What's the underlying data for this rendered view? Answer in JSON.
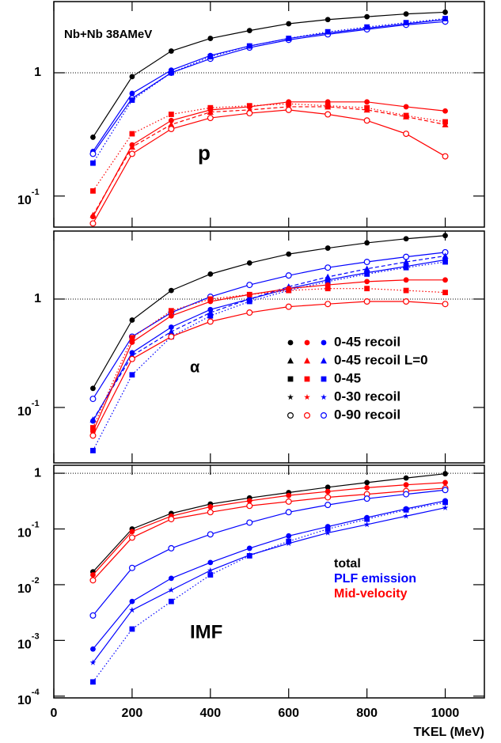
{
  "chart_data": [
    {
      "type": "line",
      "title": "Nb+Nb 38AMeV",
      "label": "p",
      "log_y": true,
      "hline": 1,
      "x": [
        100,
        200,
        300,
        400,
        500,
        600,
        700,
        800,
        900,
        1000
      ],
      "xlim": [
        0,
        1100
      ],
      "ylim": [
        0.056,
        3.78
      ],
      "yticks": [
        1,
        {
          "value": 0.1,
          "label": "10",
          "exponent": "-1"
        }
      ],
      "series": [
        {
          "color": "#000000",
          "marker": "circle",
          "dash": "solid",
          "values": [
            0.3,
            0.93,
            1.5,
            1.9,
            2.2,
            2.5,
            2.7,
            2.85,
            3.0,
            3.1
          ]
        },
        {
          "color": "#0000ff",
          "marker": "circle",
          "dash": "solid",
          "values": [
            0.23,
            0.68,
            1.05,
            1.38,
            1.65,
            1.9,
            2.1,
            2.3,
            2.5,
            2.7
          ]
        },
        {
          "color": "#0000ff",
          "marker": "open-circle",
          "dash": "solid",
          "values": [
            0.22,
            0.62,
            1.0,
            1.3,
            1.6,
            1.85,
            2.05,
            2.25,
            2.45,
            2.6
          ]
        },
        {
          "color": "#0000ff",
          "marker": "square",
          "dash": "dotted",
          "values": [
            0.185,
            0.6,
            1.0,
            1.35,
            1.65,
            1.9,
            2.15,
            2.35,
            2.55,
            2.75
          ]
        },
        {
          "color": "#ff0000",
          "marker": "square",
          "dash": "dotted",
          "values": [
            0.11,
            0.32,
            0.46,
            0.52,
            0.54,
            0.56,
            0.54,
            0.52,
            0.45,
            0.4
          ]
        },
        {
          "color": "#ff0000",
          "marker": "circle",
          "dash": "solid",
          "values": [
            0.068,
            0.26,
            0.41,
            0.5,
            0.53,
            0.58,
            0.58,
            0.58,
            0.53,
            0.49
          ]
        },
        {
          "color": "#ff0000",
          "marker": "triangle",
          "dash": "dashed",
          "values": [
            0.07,
            0.25,
            0.38,
            0.48,
            0.5,
            0.53,
            0.53,
            0.5,
            0.44,
            0.38
          ]
        },
        {
          "color": "#ff0000",
          "marker": "open-circle",
          "dash": "solid",
          "values": [
            0.06,
            0.22,
            0.35,
            0.43,
            0.47,
            0.5,
            0.46,
            0.41,
            0.32,
            0.21
          ]
        }
      ]
    },
    {
      "type": "line",
      "label": "α",
      "log_y": true,
      "hline": 1,
      "x": [
        100,
        200,
        300,
        400,
        500,
        600,
        700,
        800,
        900,
        1000
      ],
      "xlim": [
        0,
        1100
      ],
      "ylim": [
        0.0308,
        4.24
      ],
      "yticks": [
        1,
        {
          "value": 0.1,
          "label": "10",
          "exponent": "-1"
        }
      ],
      "legend_colors": [
        "#000000",
        "#ff0000",
        "#0000ff"
      ],
      "legend": [
        {
          "label": "0-45 recoil",
          "marker": "circle"
        },
        {
          "label": "0-45 recoil L=0",
          "marker": "triangle"
        },
        {
          "label": "0-45",
          "marker": "square"
        },
        {
          "label": "0-30 recoil",
          "marker": "star"
        },
        {
          "label": "0-90 recoil",
          "marker": "open-circle"
        }
      ],
      "series": [
        {
          "color": "#000000",
          "marker": "circle",
          "dash": "solid",
          "values": [
            0.15,
            0.64,
            1.2,
            1.7,
            2.15,
            2.6,
            2.95,
            3.3,
            3.6,
            3.85
          ]
        },
        {
          "color": "#0000ff",
          "marker": "open-circle",
          "dash": "solid",
          "values": [
            0.12,
            0.45,
            0.75,
            1.05,
            1.35,
            1.65,
            1.95,
            2.2,
            2.45,
            2.7
          ]
        },
        {
          "color": "#0000ff",
          "marker": "circle",
          "dash": "solid",
          "values": [
            0.075,
            0.32,
            0.55,
            0.8,
            1.0,
            1.25,
            1.5,
            1.75,
            2.0,
            2.3
          ]
        },
        {
          "color": "#0000ff",
          "marker": "triangle",
          "dash": "dashed",
          "values": [
            0.077,
            0.3,
            0.5,
            0.75,
            1.0,
            1.3,
            1.6,
            1.9,
            2.2,
            2.5
          ]
        },
        {
          "color": "#0000ff",
          "marker": "square",
          "dash": "dotted",
          "values": [
            0.04,
            0.2,
            0.45,
            0.7,
            0.95,
            1.2,
            1.45,
            1.7,
            1.95,
            2.2
          ]
        },
        {
          "color": "#ff0000",
          "marker": "square",
          "dash": "dotted",
          "values": [
            0.065,
            0.44,
            0.78,
            1.0,
            1.1,
            1.2,
            1.25,
            1.25,
            1.2,
            1.15
          ]
        },
        {
          "color": "#ff0000",
          "marker": "circle",
          "dash": "solid",
          "values": [
            0.06,
            0.4,
            0.7,
            0.95,
            1.1,
            1.25,
            1.35,
            1.45,
            1.5,
            1.5
          ]
        },
        {
          "color": "#ff0000",
          "marker": "open-circle",
          "dash": "solid",
          "values": [
            0.055,
            0.28,
            0.45,
            0.62,
            0.75,
            0.85,
            0.9,
            0.95,
            0.95,
            0.9
          ]
        }
      ]
    },
    {
      "type": "line",
      "label": "IMF",
      "log_y": true,
      "hline": 1,
      "x": [
        100,
        200,
        300,
        400,
        500,
        600,
        700,
        800,
        900,
        1000
      ],
      "xlim": [
        0,
        1100
      ],
      "xticks": [
        0,
        200,
        400,
        600,
        800,
        1000
      ],
      "xlabel": "TKEL (MeV)",
      "ylim": [
        9.3e-05,
        1.39
      ],
      "yticks": [
        1,
        {
          "value": 0.1,
          "label": "10",
          "exponent": "-1"
        },
        {
          "value": 0.01,
          "label": "10",
          "exponent": "-2"
        },
        {
          "value": 0.001,
          "label": "10",
          "exponent": "-3"
        },
        {
          "value": 0.0001,
          "label": "10",
          "exponent": "-4"
        }
      ],
      "legend": [
        {
          "label": "total",
          "color": "#000000"
        },
        {
          "label": "PLF emission",
          "color": "#0000ff"
        },
        {
          "label": "Mid-velocity",
          "color": "#ff0000"
        }
      ],
      "series": [
        {
          "color": "#000000",
          "marker": "circle",
          "dash": "solid",
          "values": [
            0.017,
            0.1,
            0.19,
            0.28,
            0.36,
            0.45,
            0.56,
            0.68,
            0.82,
            0.98
          ]
        },
        {
          "color": "#ff0000",
          "marker": "circle",
          "dash": "solid",
          "values": [
            0.015,
            0.09,
            0.17,
            0.25,
            0.32,
            0.4,
            0.47,
            0.55,
            0.62,
            0.68
          ]
        },
        {
          "color": "#ff0000",
          "marker": "open-circle",
          "dash": "solid",
          "values": [
            0.012,
            0.07,
            0.15,
            0.2,
            0.26,
            0.31,
            0.37,
            0.42,
            0.48,
            0.54
          ]
        },
        {
          "color": "#0000ff",
          "marker": "open-circle",
          "dash": "solid",
          "values": [
            0.0028,
            0.02,
            0.045,
            0.08,
            0.13,
            0.2,
            0.27,
            0.35,
            0.42,
            0.5
          ]
        },
        {
          "color": "#0000ff",
          "marker": "circle",
          "dash": "solid",
          "values": [
            0.0007,
            0.005,
            0.013,
            0.025,
            0.045,
            0.075,
            0.11,
            0.16,
            0.23,
            0.32
          ]
        },
        {
          "color": "#0000ff",
          "marker": "square",
          "dash": "dotted",
          "values": [
            0.00018,
            0.0016,
            0.005,
            0.015,
            0.033,
            0.06,
            0.1,
            0.15,
            0.22,
            0.3
          ]
        },
        {
          "color": "#0000ff",
          "marker": "star",
          "dash": "solid",
          "values": [
            0.0004,
            0.0035,
            0.008,
            0.018,
            0.034,
            0.055,
            0.085,
            0.12,
            0.17,
            0.24
          ]
        }
      ]
    }
  ]
}
